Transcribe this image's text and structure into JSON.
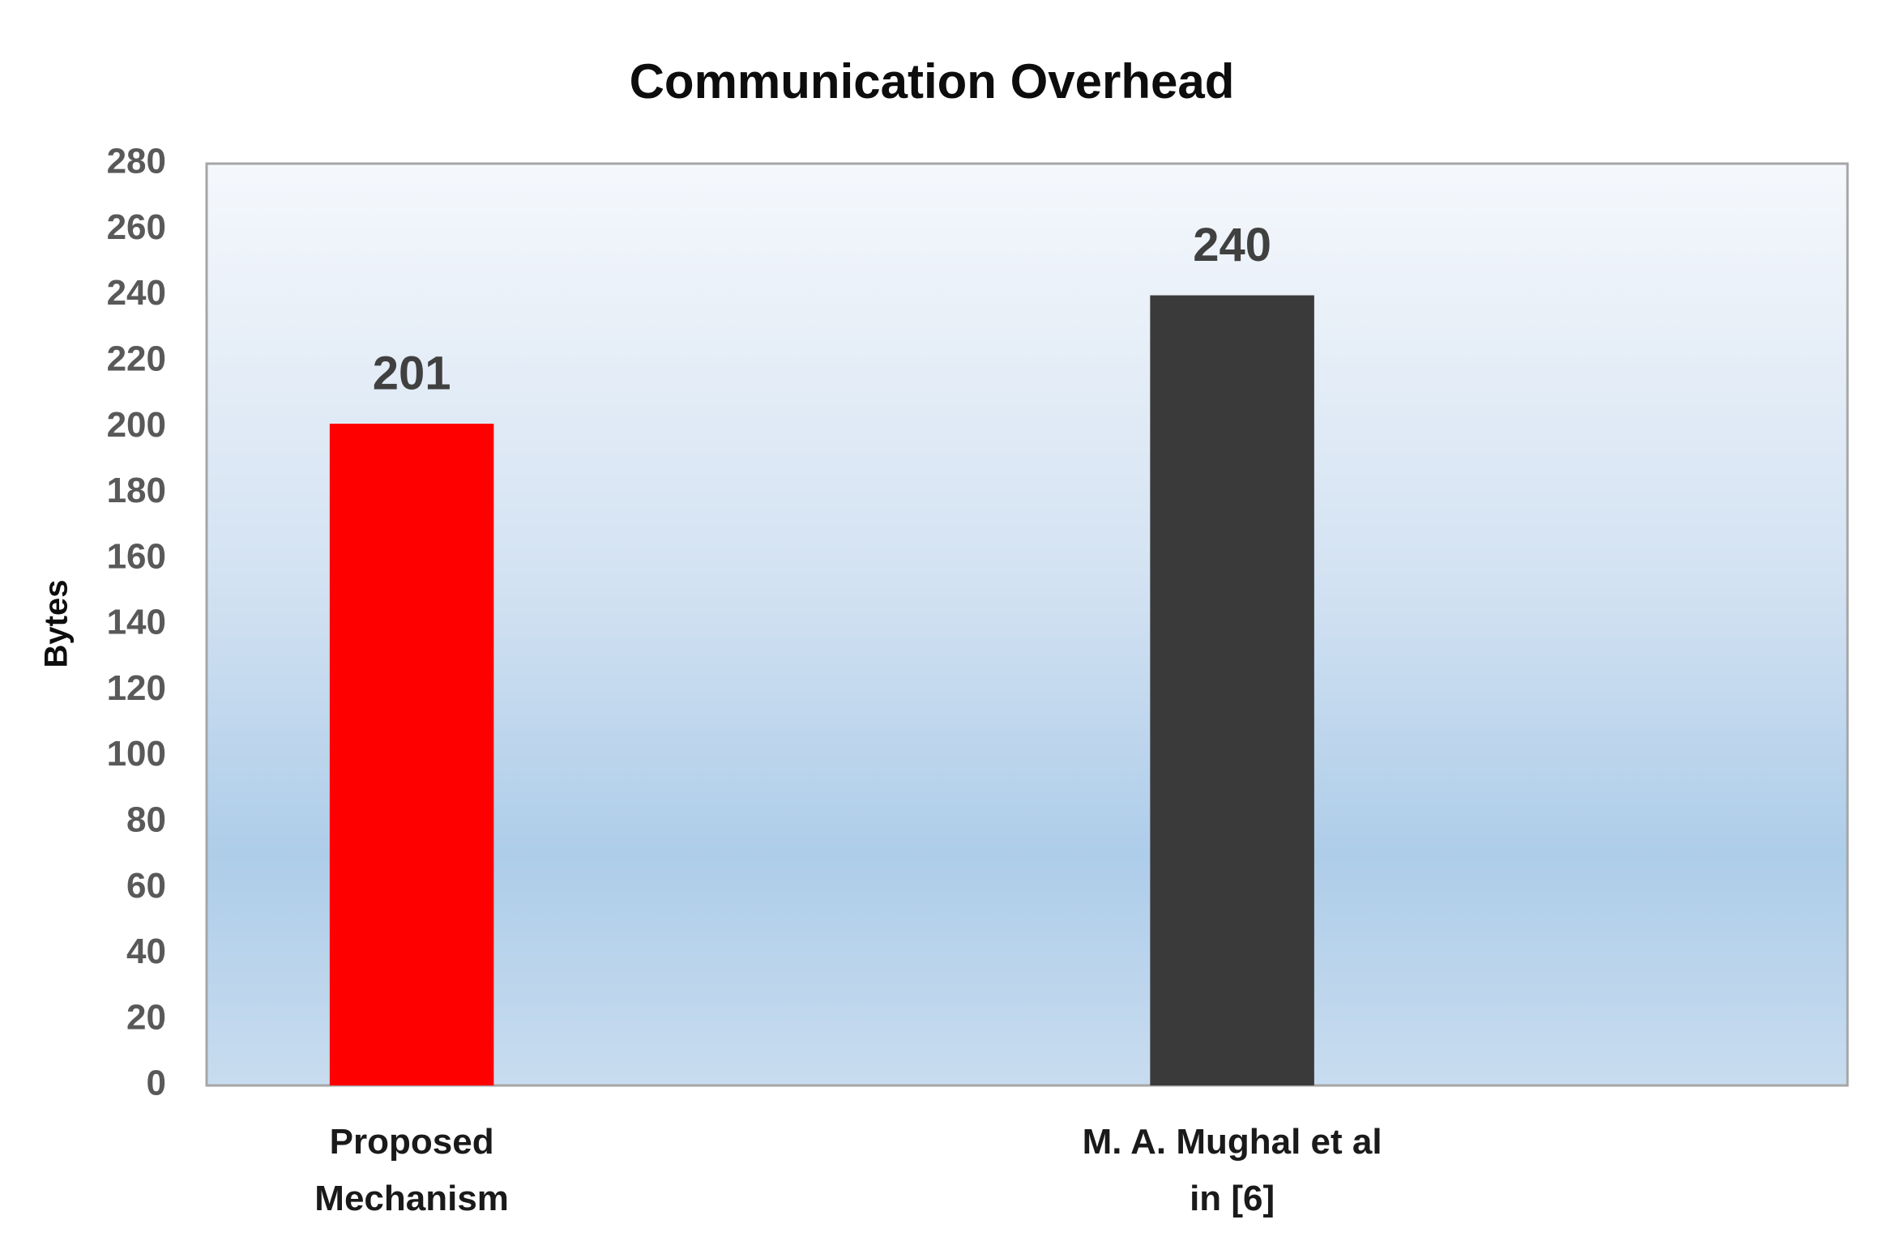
{
  "chart_data": {
    "type": "bar",
    "title": "Communication Overhead",
    "y_label": "Bytes",
    "categories": [
      "Proposed\nMechanism",
      "M. A. Mughal et al\nin [6]"
    ],
    "values": [
      201,
      240
    ],
    "colors": [
      "#ff0000",
      "#3a3a3a"
    ],
    "ylim": [
      0,
      280
    ],
    "yticks": [
      0,
      20,
      40,
      60,
      80,
      100,
      120,
      140,
      160,
      180,
      200,
      220,
      240,
      260,
      280
    ],
    "grid": false,
    "data_labels": true
  }
}
